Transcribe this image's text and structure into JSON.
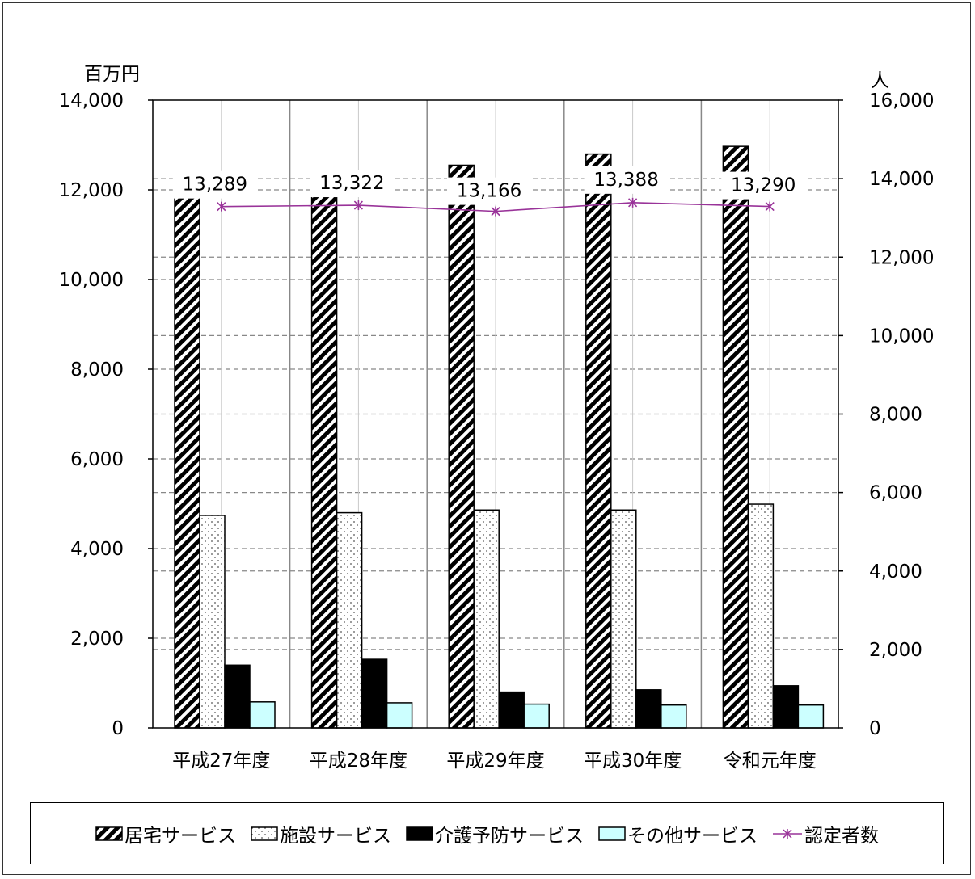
{
  "chart_data": {
    "type": "bar",
    "categories": [
      "平成27年度",
      "平成28年度",
      "平成29年度",
      "平成30年度",
      "令和元年度"
    ],
    "series": [
      {
        "name": "居宅サービス",
        "axis": "left",
        "type": "bar",
        "pattern": "diagonal-hatch",
        "color": "#000000",
        "values": [
          12250,
          12250,
          12550,
          12800,
          12970
        ]
      },
      {
        "name": "施設サービス",
        "axis": "left",
        "type": "bar",
        "pattern": "dots",
        "color": "#ffffff",
        "values": [
          4740,
          4800,
          4860,
          4860,
          4990
        ]
      },
      {
        "name": "介護予防サービス",
        "axis": "left",
        "type": "bar",
        "pattern": "solid",
        "color": "#000000",
        "values": [
          1400,
          1530,
          800,
          850,
          940
        ]
      },
      {
        "name": "その他サービス",
        "axis": "left",
        "type": "bar",
        "pattern": "solid",
        "color": "#ccffff",
        "values": [
          580,
          560,
          530,
          510,
          510
        ]
      },
      {
        "name": "認定者数",
        "axis": "right",
        "type": "line",
        "marker": "asterisk",
        "color": "#993399",
        "values": [
          13289,
          13322,
          13166,
          13388,
          13290
        ]
      }
    ],
    "data_labels": [
      "13,289",
      "13,322",
      "13,166",
      "13,388",
      "13,290"
    ],
    "left_axis": {
      "unit": "百万円",
      "ylim": [
        0,
        14000
      ],
      "ticks": [
        "0",
        "2,000",
        "4,000",
        "6,000",
        "8,000",
        "10,000",
        "12,000",
        "14,000"
      ]
    },
    "right_axis": {
      "unit": "人",
      "ylim": [
        0,
        16000
      ],
      "ticks": [
        "0",
        "2,000",
        "4,000",
        "6,000",
        "8,000",
        "10,000",
        "12,000",
        "14,000",
        "16,000"
      ]
    },
    "grid": true,
    "legend_position": "bottom"
  }
}
